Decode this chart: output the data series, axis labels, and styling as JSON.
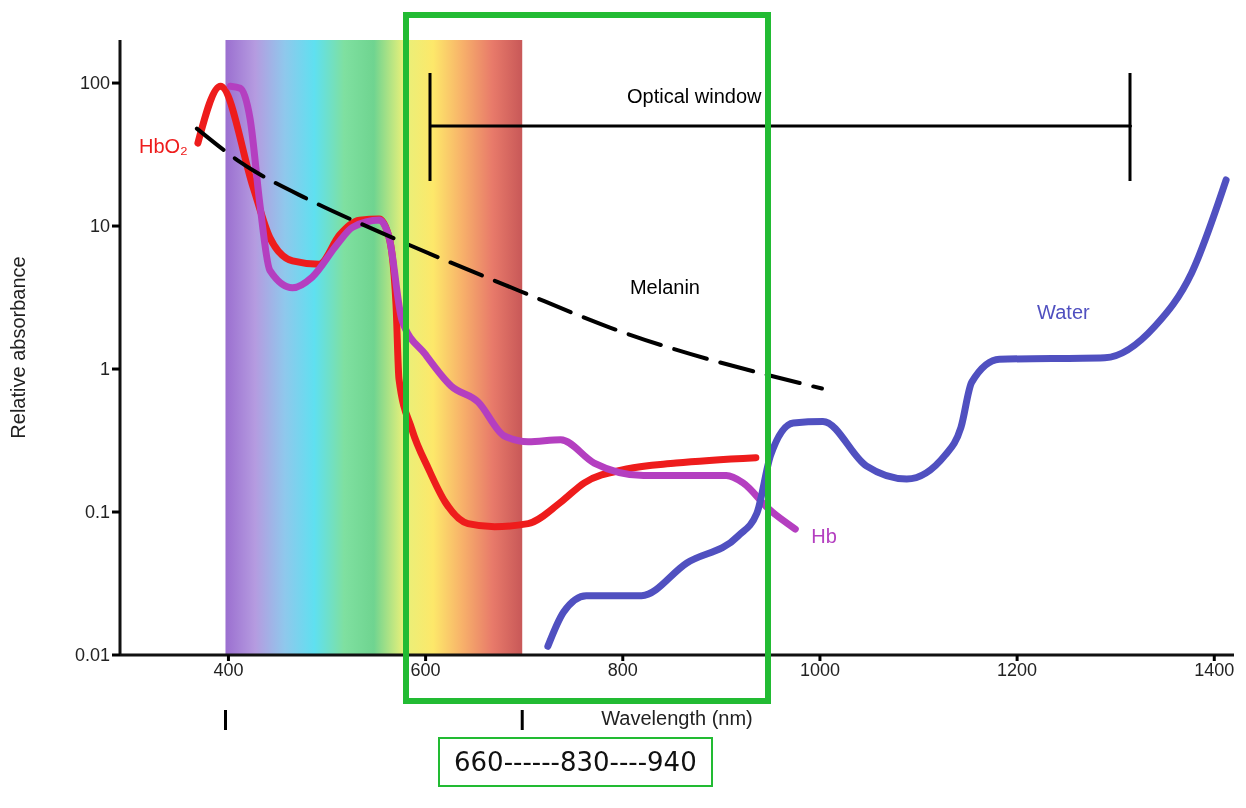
{
  "chart_data": {
    "type": "line",
    "xlabel": "Wavelength (nm)",
    "ylabel": "Relative absorbance",
    "log": "y",
    "marker": "none",
    "xlim": [
      290,
      1420
    ],
    "xticks": [
      400,
      600,
      800,
      1000,
      1200,
      1400
    ],
    "ylim": [
      0.01,
      200
    ],
    "yticks": [
      0.01,
      0.1,
      1,
      10,
      100
    ],
    "series": [
      {
        "name": "HbO₂",
        "color": "#ee1c1c",
        "x": [
          369,
          392,
          425,
          442,
          465,
          492,
          513,
          533,
          553,
          563,
          570,
          573,
          586,
          603,
          620,
          643,
          670,
          704,
          737,
          761,
          804,
          854,
          935
        ],
        "values": [
          38,
          95,
          18.7,
          8.3,
          5.7,
          5.4,
          8.7,
          11,
          11.2,
          8.3,
          2.8,
          0.85,
          0.38,
          0.2,
          0.117,
          0.083,
          0.079,
          0.083,
          0.117,
          0.16,
          0.2,
          0.22,
          0.24
        ]
      },
      {
        "name": "Hb",
        "color": "#b43fc0",
        "x": [
          402,
          412,
          422,
          432,
          442,
          465,
          485,
          510,
          526,
          553,
          563,
          576,
          600,
          626,
          653,
          680,
          704,
          737,
          771,
          821,
          905,
          922,
          948,
          975
        ],
        "values": [
          95,
          92,
          56,
          14,
          4.9,
          3.7,
          4.4,
          7.4,
          9.8,
          11,
          8.3,
          2.2,
          1.26,
          0.76,
          0.59,
          0.34,
          0.31,
          0.32,
          0.22,
          0.18,
          0.18,
          0.16,
          0.105,
          0.076
        ]
      },
      {
        "name": "Melanin",
        "color": "#000000",
        "line_style": "dashed",
        "x": [
          368,
          412,
          484,
          553,
          696,
          787,
          1002
        ],
        "values": [
          48,
          28,
          15,
          9.1,
          3.5,
          1.95,
          0.73
        ]
      },
      {
        "name": "Water",
        "color": "#5050c0",
        "x": [
          724,
          740,
          763,
          819,
          865,
          917,
          936,
          950,
          973,
          1003,
          1047,
          1088,
          1127,
          1143,
          1154,
          1182,
          1289,
          1340,
          1377,
          1412
        ],
        "values": [
          0.0115,
          0.02,
          0.026,
          0.026,
          0.044,
          0.068,
          0.098,
          0.25,
          0.42,
          0.43,
          0.21,
          0.17,
          0.25,
          0.39,
          0.81,
          1.17,
          1.2,
          2.0,
          4.7,
          21
        ]
      },
      {
        "color": "#000000",
        "x": [
          605,
          1315
        ],
        "values": [
          50,
          50
        ]
      }
    ],
    "bands": [
      {
        "axis": "x",
        "from": 397,
        "to": 698
      }
    ],
    "annotations": [
      "Optical window",
      "660------830----940"
    ]
  }
}
